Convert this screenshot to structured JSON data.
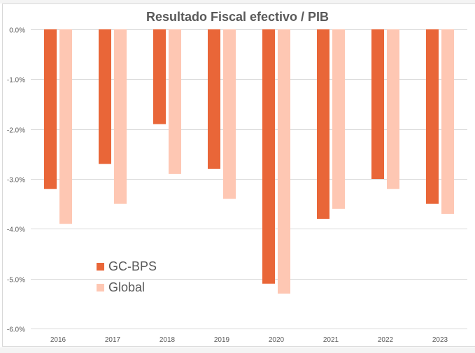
{
  "chart_data": {
    "type": "bar",
    "title": "Resultado Fiscal efectivo / PIB",
    "xlabel": "",
    "ylabel": "",
    "categories": [
      "2016",
      "2017",
      "2018",
      "2019",
      "2020",
      "2021",
      "2022",
      "2023"
    ],
    "series": [
      {
        "name": "GC-BPS",
        "color": "#e96638",
        "values": [
          -3.2,
          -2.7,
          -1.9,
          -2.8,
          -5.1,
          -3.8,
          -3.0,
          -3.5
        ]
      },
      {
        "name": "Global",
        "color": "#fec7b3",
        "values": [
          -3.9,
          -3.5,
          -2.9,
          -3.4,
          -5.3,
          -3.6,
          -3.2,
          -3.7
        ]
      }
    ],
    "ylim": [
      -6.0,
      0.0
    ],
    "yticks": [
      0.0,
      -1.0,
      -2.0,
      -3.0,
      -4.0,
      -5.0,
      -6.0
    ],
    "ytick_labels": [
      "0.0%",
      "-1.0%",
      "-2.0%",
      "-3.0%",
      "-4.0%",
      "-5.0%",
      "-6.0%"
    ],
    "grid": true,
    "legend_position": "lower-left inside plot"
  }
}
